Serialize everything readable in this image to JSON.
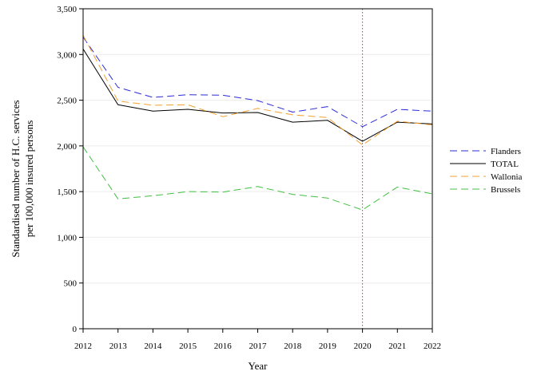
{
  "chart_data": {
    "type": "line",
    "title": "",
    "xlabel": "Year",
    "ylabel_lines": [
      "Standardised number of H.C. services",
      "per 100,000 insured persons"
    ],
    "x": [
      2012,
      2013,
      2014,
      2015,
      2016,
      2017,
      2018,
      2019,
      2020,
      2021,
      2022
    ],
    "x_tick_labels": [
      "2012",
      "2013",
      "2014",
      "2015",
      "2016",
      "2017",
      "2018",
      "2019",
      "2020",
      "2021",
      "2022"
    ],
    "xlim": [
      2012,
      2022
    ],
    "ylim": [
      0,
      3500
    ],
    "y_ticks": [
      0,
      500,
      1000,
      1500,
      2000,
      2500,
      3000,
      3500
    ],
    "y_tick_labels": [
      "0",
      "500",
      "1,000",
      "1,500",
      "2,000",
      "2,500",
      "3,000",
      "3,500"
    ],
    "grid": true,
    "legend_position": "right",
    "reference_line": {
      "x": 2020,
      "color": "#c0306a",
      "style": "dotted"
    },
    "series": [
      {
        "name": "Flanders",
        "color": "#2b2bd6",
        "dash": "dashed",
        "values": [
          3190,
          2640,
          2530,
          2560,
          2555,
          2495,
          2370,
          2430,
          2210,
          2400,
          2380
        ]
      },
      {
        "name": "TOTAL",
        "color": "#000000",
        "dash": "solid",
        "values": [
          3060,
          2450,
          2380,
          2400,
          2360,
          2365,
          2260,
          2280,
          2050,
          2260,
          2240
        ]
      },
      {
        "name": "Wallonia",
        "color": "#f0a030",
        "dash": "dashed",
        "values": [
          3210,
          2490,
          2445,
          2450,
          2320,
          2410,
          2340,
          2310,
          2010,
          2270,
          2230
        ]
      },
      {
        "name": "Brussels",
        "color": "#40c040",
        "dash": "dashed",
        "values": [
          1990,
          1420,
          1455,
          1500,
          1495,
          1555,
          1470,
          1430,
          1300,
          1550,
          1475
        ]
      }
    ]
  }
}
